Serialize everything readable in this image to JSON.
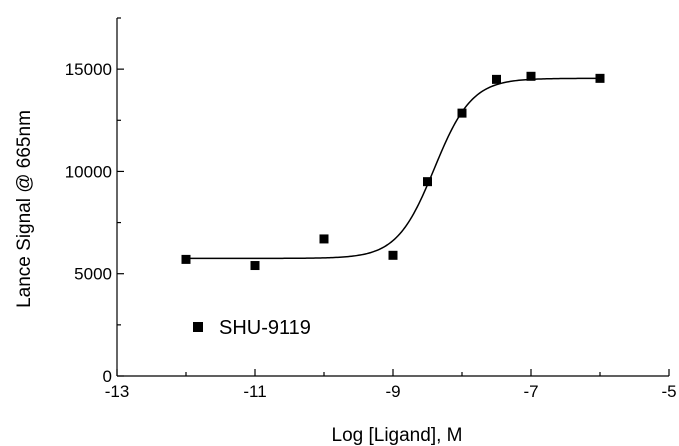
{
  "chart_data": {
    "type": "scatter",
    "xlabel": "Log [Ligand], M",
    "ylabel": "Lance Signal @ 665nm",
    "xlim": [
      -13,
      -5
    ],
    "ylim": [
      0,
      17500
    ],
    "x_ticks": [
      -13,
      -11,
      -9,
      -7,
      -5
    ],
    "x_tick_labels": [
      "-13",
      "-11",
      "-9",
      "-7",
      "-5"
    ],
    "y_ticks": [
      0,
      5000,
      10000,
      15000
    ],
    "y_tick_labels": [
      "0",
      "5000",
      "10000",
      "15000"
    ],
    "legend_position": "bottom-left",
    "grid": false,
    "series": [
      {
        "name": "SHU-9119",
        "marker": "square",
        "color": "#000000",
        "x": [
          -12,
          -11,
          -10,
          -9,
          -8.5,
          -8,
          -7.5,
          -7,
          -6
        ],
        "y": [
          5700,
          5400,
          6700,
          5900,
          9500,
          12850,
          14500,
          14650,
          14550
        ]
      }
    ],
    "fit_curve": {
      "model": "sigmoidal dose-response",
      "bottom": 5750,
      "top": 14550,
      "log_ec50": -8.4,
      "hill_slope": 1.6,
      "color": "#000000"
    }
  }
}
